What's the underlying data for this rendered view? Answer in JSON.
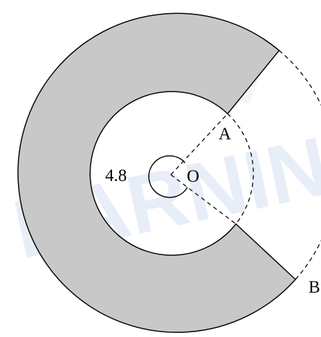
{
  "labels": {
    "center": "O",
    "point_a": "A",
    "point_b": "B",
    "angle_value": "4.8"
  },
  "watermark": {
    "text": "EARNING",
    "color": "#dce6f5"
  },
  "colors": {
    "shaded_region": "#c8c8c8",
    "stroke": "#000000",
    "background": "#ffffff"
  }
}
